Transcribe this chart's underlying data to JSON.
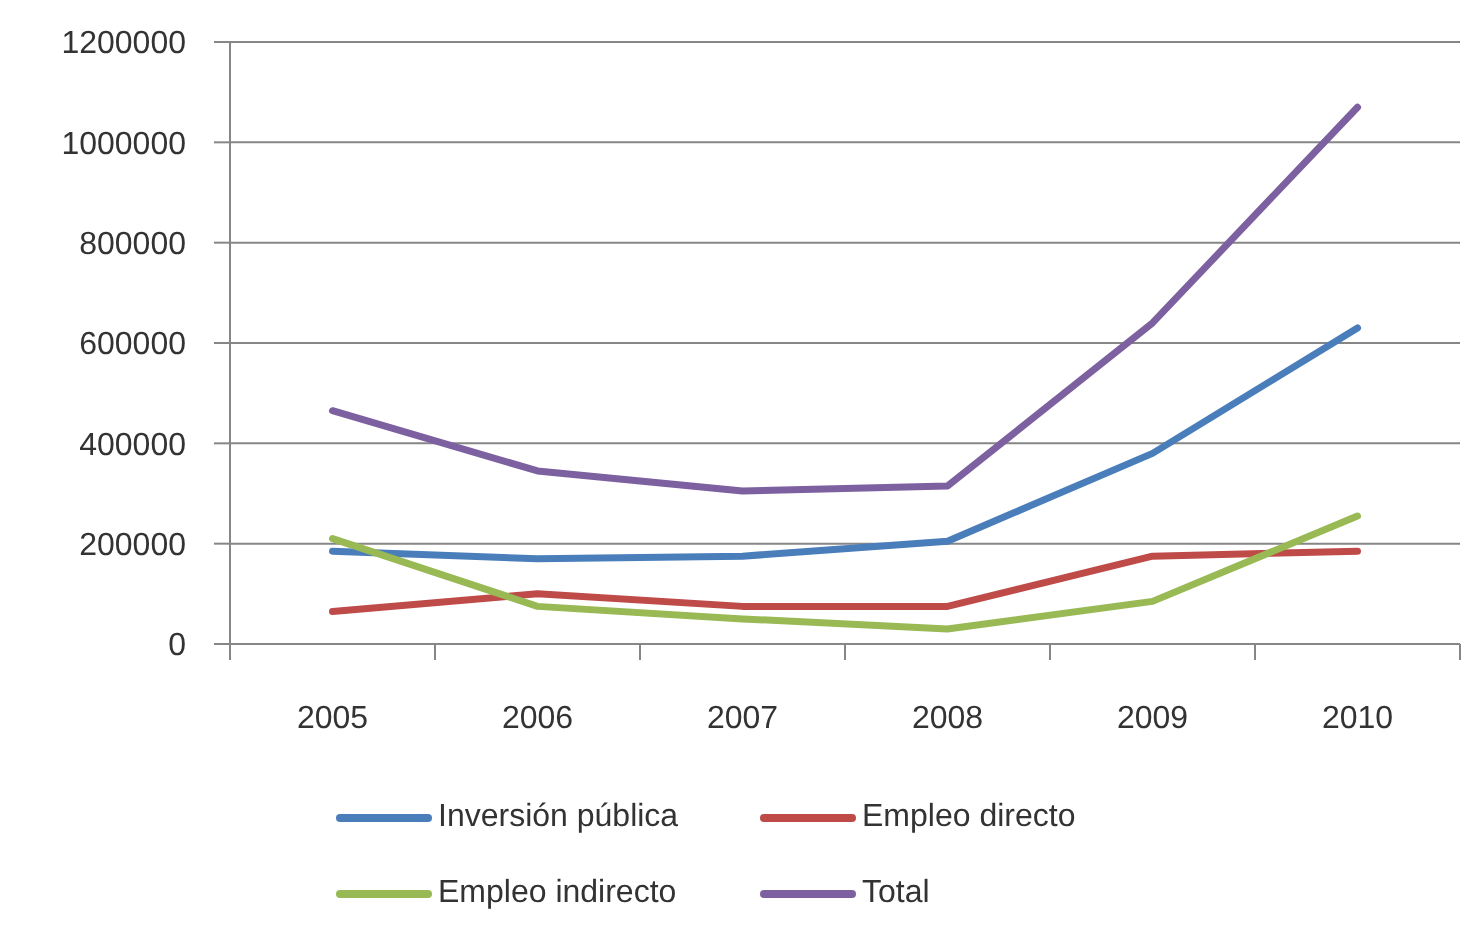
{
  "chart_data": {
    "type": "line",
    "categories": [
      "2005",
      "2006",
      "2007",
      "2008",
      "2009",
      "2010"
    ],
    "series": [
      {
        "name": "Inversión pública",
        "color": "#4a7ebb",
        "values": [
          185000,
          170000,
          175000,
          205000,
          380000,
          630000
        ]
      },
      {
        "name": "Empleo directo",
        "color": "#be4b48",
        "values": [
          65000,
          100000,
          75000,
          75000,
          175000,
          185000
        ]
      },
      {
        "name": "Empleo indirecto",
        "color": "#98b954",
        "values": [
          210000,
          75000,
          50000,
          30000,
          85000,
          255000
        ]
      },
      {
        "name": "Total",
        "color": "#7d60a0",
        "values": [
          465000,
          345000,
          305000,
          315000,
          640000,
          1070000
        ]
      }
    ],
    "ylim": [
      0,
      1200000
    ],
    "yticks": [
      0,
      200000,
      400000,
      600000,
      800000,
      1000000,
      1200000
    ],
    "grid": "y",
    "legend": "bottom",
    "line_style": "solid"
  }
}
